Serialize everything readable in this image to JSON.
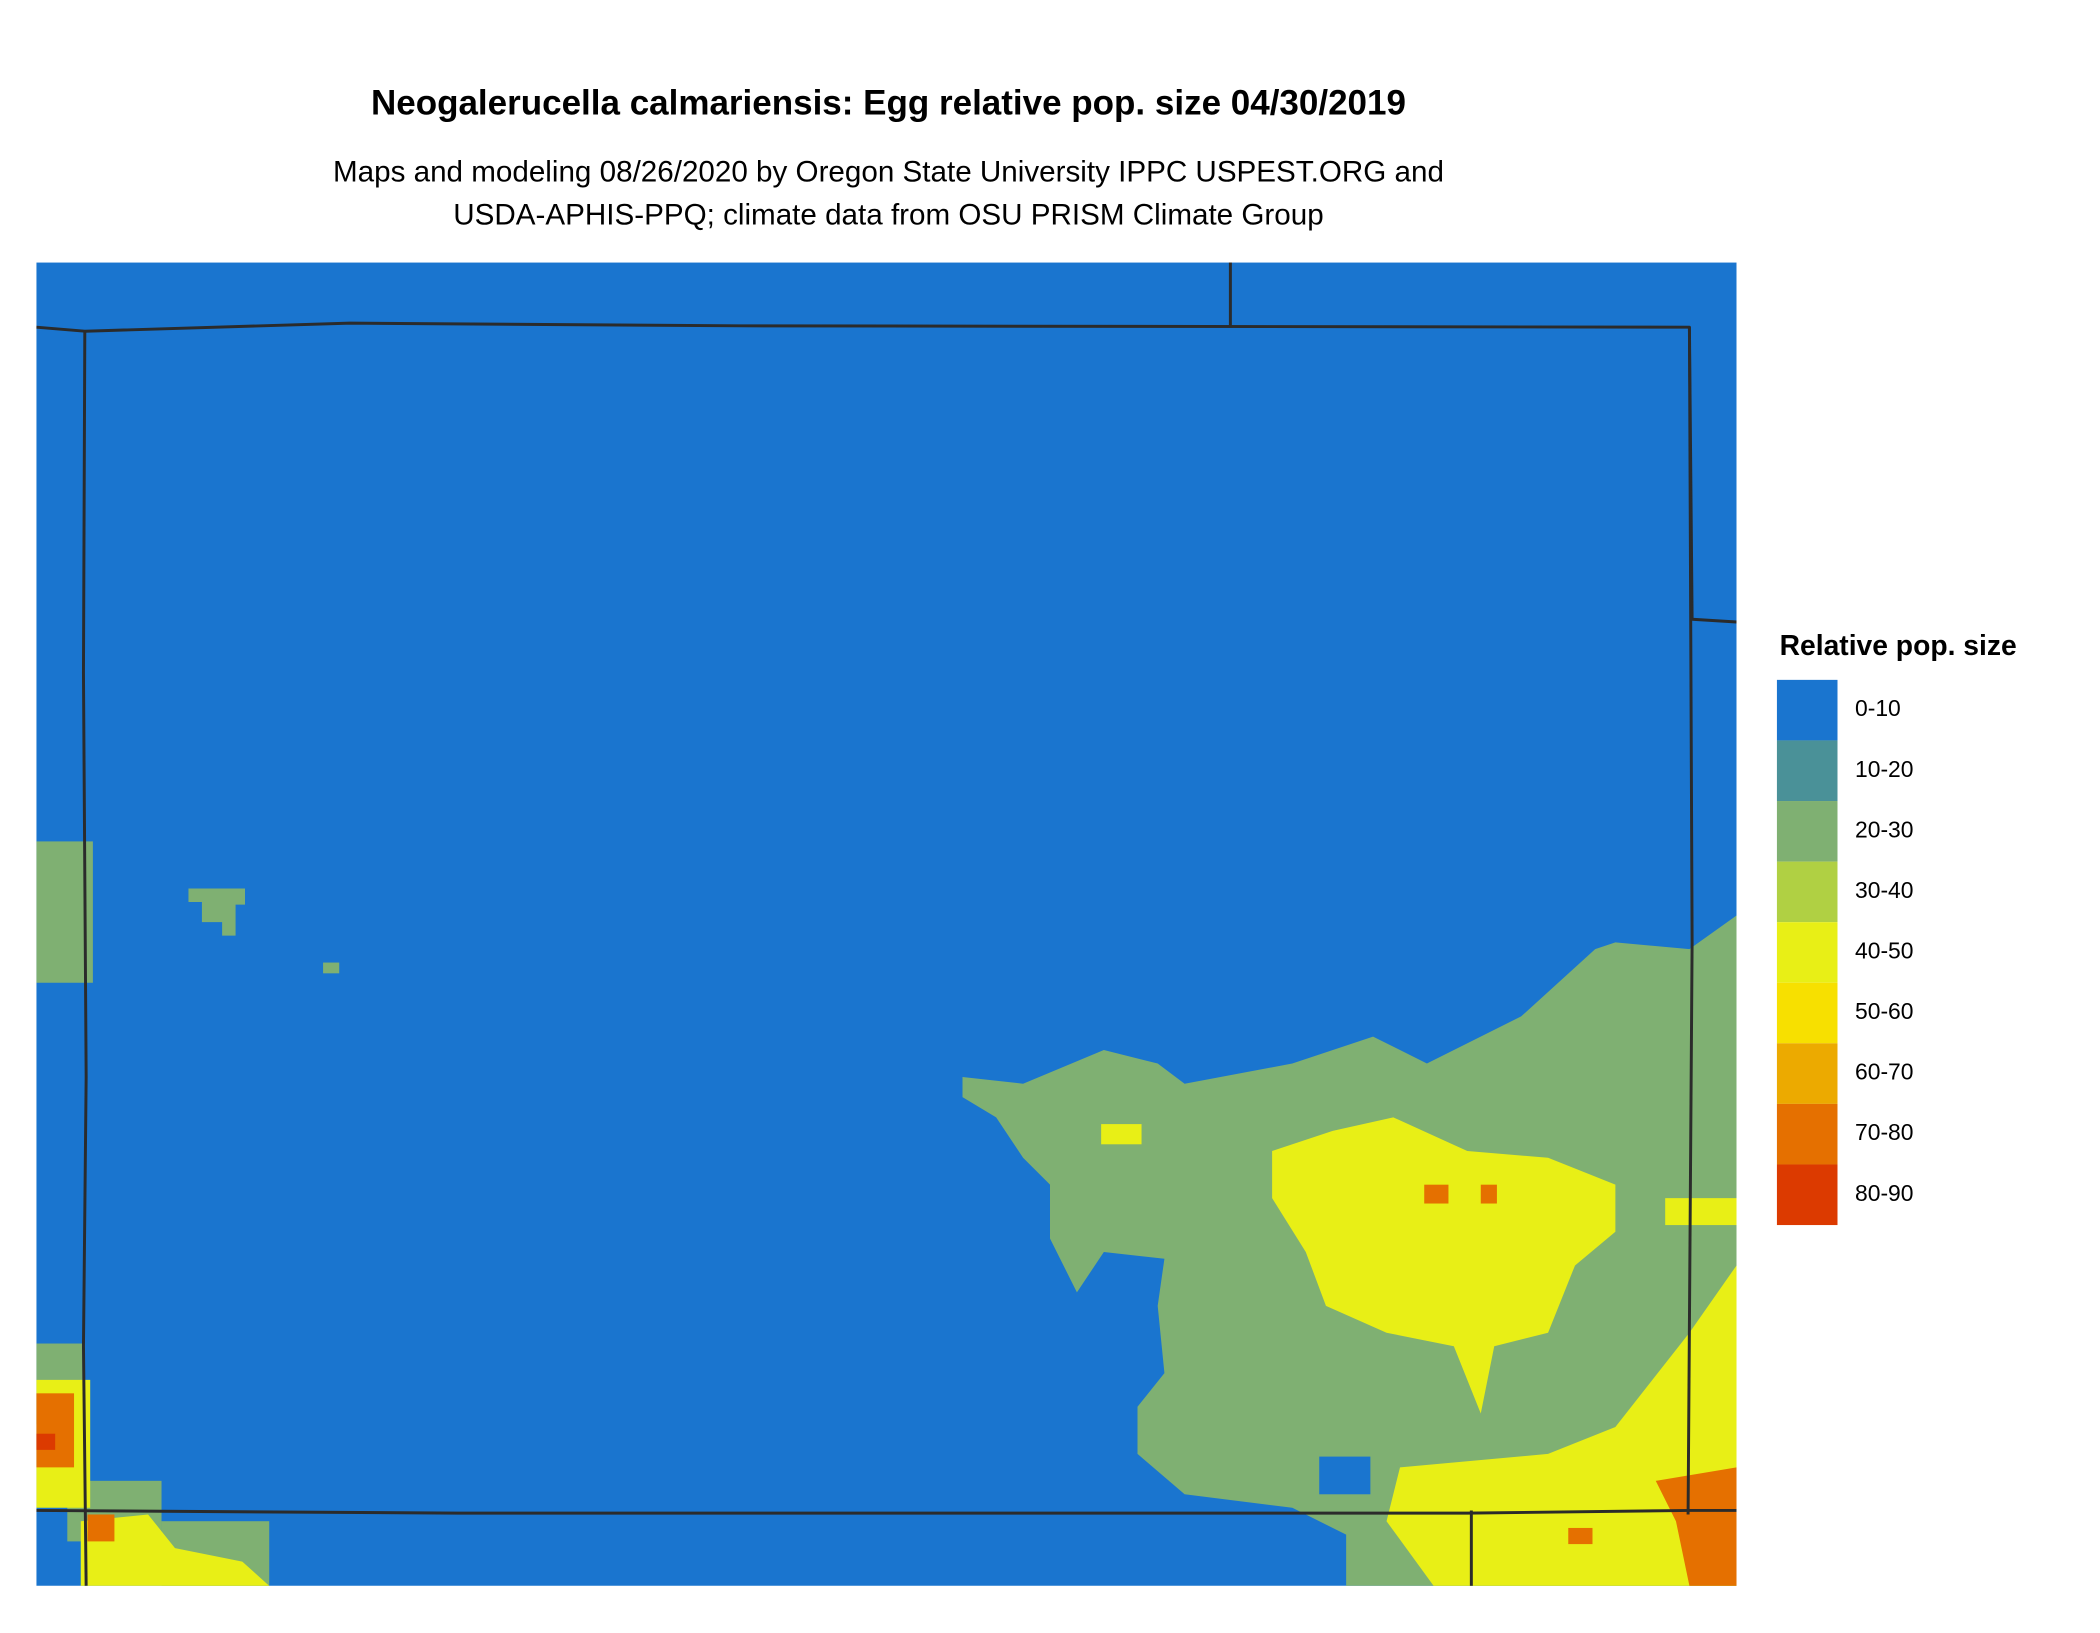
{
  "header": {
    "title": "Neogalerucella calmariensis: Egg relative pop. size 04/30/2019",
    "subtitle": [
      "Maps and modeling 08/26/2020 by Oregon State University IPPC USPEST.ORG and",
      "USDA-APHIS-PPQ; climate data from OSU PRISM Climate Group"
    ]
  },
  "legend": {
    "title": "Relative pop. size",
    "items": [
      {
        "label": "0-10",
        "color": "#1a75cf"
      },
      {
        "label": "10-20",
        "color": "#4a9198"
      },
      {
        "label": "20-30",
        "color": "#7fb072"
      },
      {
        "label": "30-40",
        "color": "#b0d043"
      },
      {
        "label": "40-50",
        "color": "#e8ef16"
      },
      {
        "label": "50-60",
        "color": "#f7e000"
      },
      {
        "label": "60-70",
        "color": "#ecaa00"
      },
      {
        "label": "70-80",
        "color": "#e57000"
      },
      {
        "label": "80-90",
        "color": "#dc3a00"
      }
    ]
  }
}
